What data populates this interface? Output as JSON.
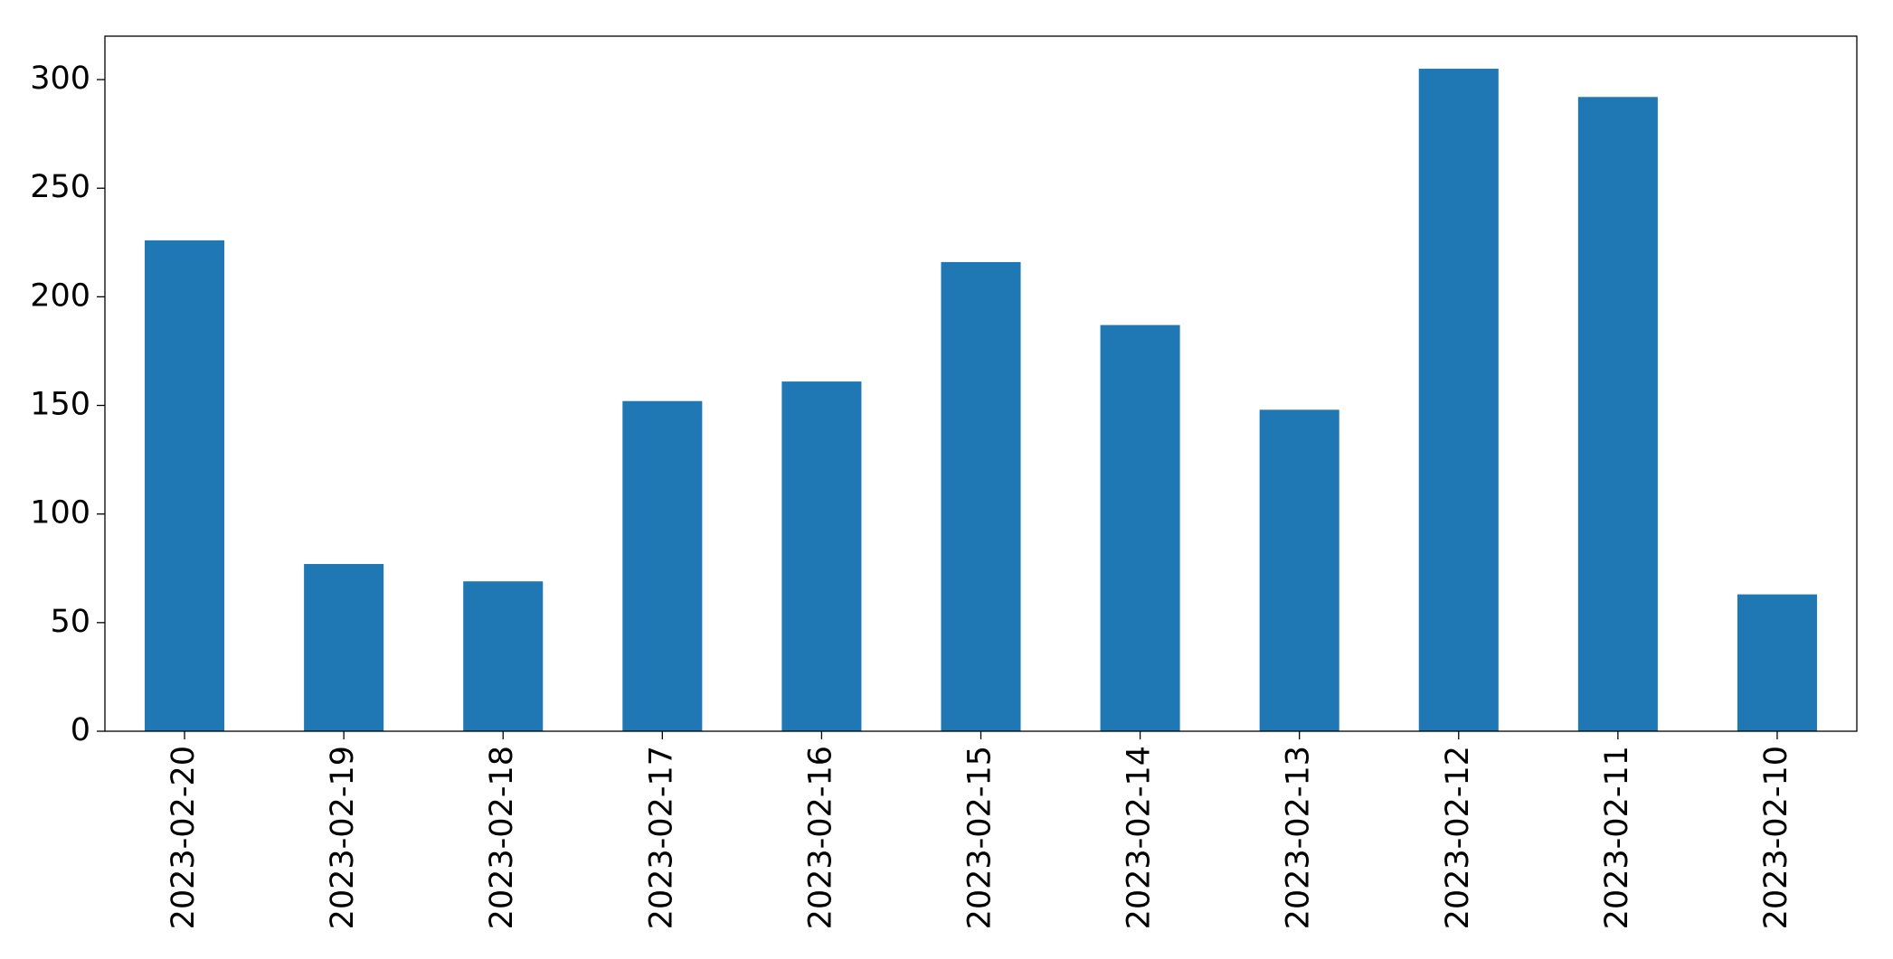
{
  "chart_data": {
    "type": "bar",
    "categories": [
      "2023-02-20",
      "2023-02-19",
      "2023-02-18",
      "2023-02-17",
      "2023-02-16",
      "2023-02-15",
      "2023-02-14",
      "2023-02-13",
      "2023-02-12",
      "2023-02-11",
      "2023-02-10"
    ],
    "values": [
      226,
      77,
      69,
      152,
      161,
      216,
      187,
      148,
      305,
      292,
      63
    ],
    "color": "#1f77b4",
    "ylim": [
      0,
      320
    ],
    "yticks": [
      0,
      50,
      100,
      150,
      200,
      250,
      300
    ],
    "grid": false
  }
}
